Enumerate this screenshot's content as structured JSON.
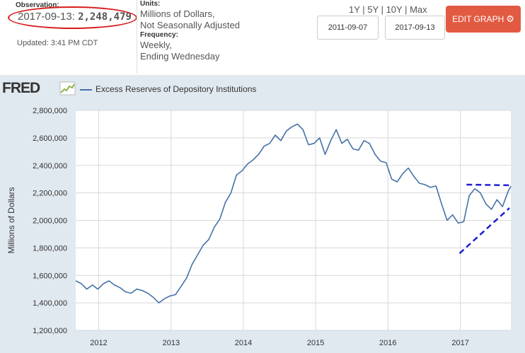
{
  "header": {
    "observation_label": "Observation:",
    "observation_date": "2017-09-13:",
    "observation_value": "2,248,479",
    "updated": "Updated: 3:41 PM CDT",
    "units_label": "Units:",
    "units_line1": "Millions of Dollars,",
    "units_line2": "Not Seasonally Adjusted",
    "frequency_label": "Frequency:",
    "frequency_line1": "Weekly,",
    "frequency_line2": "Ending Wednesday",
    "ranges": [
      "1Y",
      "5Y",
      "10Y",
      "Max"
    ],
    "start_date": "2011-09-07",
    "end_date": "2017-09-13",
    "edit_button": "EDIT GRAPH",
    "gear_icon": "⚙"
  },
  "colors": {
    "series": "#4572a7",
    "annotation": "#1f1fd6",
    "highlight_circle": "#d81b1b",
    "edit_button": "#e25a42",
    "plot_background": "#ffffff",
    "outer_background": "#e1e9f0"
  },
  "chart_data": {
    "type": "line",
    "brand": "FRED",
    "title": "",
    "xlabel": "",
    "ylabel": "Millions of Dollars",
    "ylim": [
      1200000,
      2800000
    ],
    "yticks": [
      1200000,
      1400000,
      1600000,
      1800000,
      2000000,
      2200000,
      2400000,
      2600000,
      2800000
    ],
    "ytick_labels": [
      "1,200,000",
      "1,400,000",
      "1,600,000",
      "1,800,000",
      "2,000,000",
      "2,200,000",
      "2,400,000",
      "2,600,000",
      "2,800,000"
    ],
    "xlim": [
      "2011-09-07",
      "2017-09-13"
    ],
    "xticks": [
      "2012",
      "2013",
      "2014",
      "2015",
      "2016",
      "2017"
    ],
    "grid": true,
    "legend": "top-left",
    "series": [
      {
        "name": "Excess Reserves of Depository Institutions",
        "x": [
          "2011-09-07",
          "2011-10-05",
          "2011-11-02",
          "2011-11-30",
          "2011-12-28",
          "2012-01-25",
          "2012-02-22",
          "2012-03-21",
          "2012-04-18",
          "2012-05-16",
          "2012-06-13",
          "2012-07-11",
          "2012-08-08",
          "2012-09-05",
          "2012-10-03",
          "2012-10-31",
          "2012-11-28",
          "2012-12-26",
          "2013-01-23",
          "2013-02-20",
          "2013-03-20",
          "2013-04-17",
          "2013-05-15",
          "2013-06-12",
          "2013-07-10",
          "2013-08-07",
          "2013-09-04",
          "2013-10-02",
          "2013-10-30",
          "2013-11-27",
          "2013-12-25",
          "2014-01-22",
          "2014-02-19",
          "2014-03-19",
          "2014-04-16",
          "2014-05-14",
          "2014-06-11",
          "2014-07-09",
          "2014-08-06",
          "2014-09-03",
          "2014-10-01",
          "2014-10-29",
          "2014-11-26",
          "2014-12-24",
          "2015-01-21",
          "2015-02-18",
          "2015-03-18",
          "2015-04-15",
          "2015-05-13",
          "2015-06-10",
          "2015-07-08",
          "2015-08-05",
          "2015-09-02",
          "2015-09-30",
          "2015-10-28",
          "2015-11-25",
          "2015-12-23",
          "2016-01-20",
          "2016-02-17",
          "2016-03-16",
          "2016-04-13",
          "2016-05-11",
          "2016-06-08",
          "2016-07-06",
          "2016-08-03",
          "2016-08-31",
          "2016-09-28",
          "2016-10-26",
          "2016-11-23",
          "2016-12-21",
          "2017-01-18",
          "2017-02-15",
          "2017-03-15",
          "2017-04-12",
          "2017-05-10",
          "2017-06-07",
          "2017-07-05",
          "2017-08-02",
          "2017-08-30",
          "2017-09-13"
        ],
        "values": [
          1560000,
          1540000,
          1500000,
          1530000,
          1500000,
          1540000,
          1560000,
          1530000,
          1510000,
          1480000,
          1470000,
          1500000,
          1490000,
          1470000,
          1440000,
          1400000,
          1430000,
          1450000,
          1460000,
          1520000,
          1580000,
          1680000,
          1750000,
          1820000,
          1860000,
          1950000,
          2010000,
          2130000,
          2200000,
          2330000,
          2360000,
          2410000,
          2440000,
          2480000,
          2540000,
          2560000,
          2620000,
          2580000,
          2650000,
          2680000,
          2700000,
          2660000,
          2550000,
          2560000,
          2600000,
          2480000,
          2580000,
          2660000,
          2560000,
          2590000,
          2520000,
          2510000,
          2580000,
          2560000,
          2480000,
          2430000,
          2420000,
          2300000,
          2280000,
          2340000,
          2380000,
          2320000,
          2270000,
          2260000,
          2240000,
          2250000,
          2120000,
          2000000,
          2040000,
          1980000,
          1990000,
          2180000,
          2230000,
          2200000,
          2120000,
          2080000,
          2150000,
          2100000,
          2210000,
          2248479
        ]
      }
    ],
    "annotations": [
      {
        "type": "dashed-trendline",
        "from": [
          "2017-02-01",
          2260000
        ],
        "to": [
          "2017-09-13",
          2255000
        ]
      },
      {
        "type": "dashed-trendline",
        "from": [
          "2016-12-28",
          1760000
        ],
        "to": [
          "2017-09-06",
          2090000
        ]
      }
    ]
  }
}
